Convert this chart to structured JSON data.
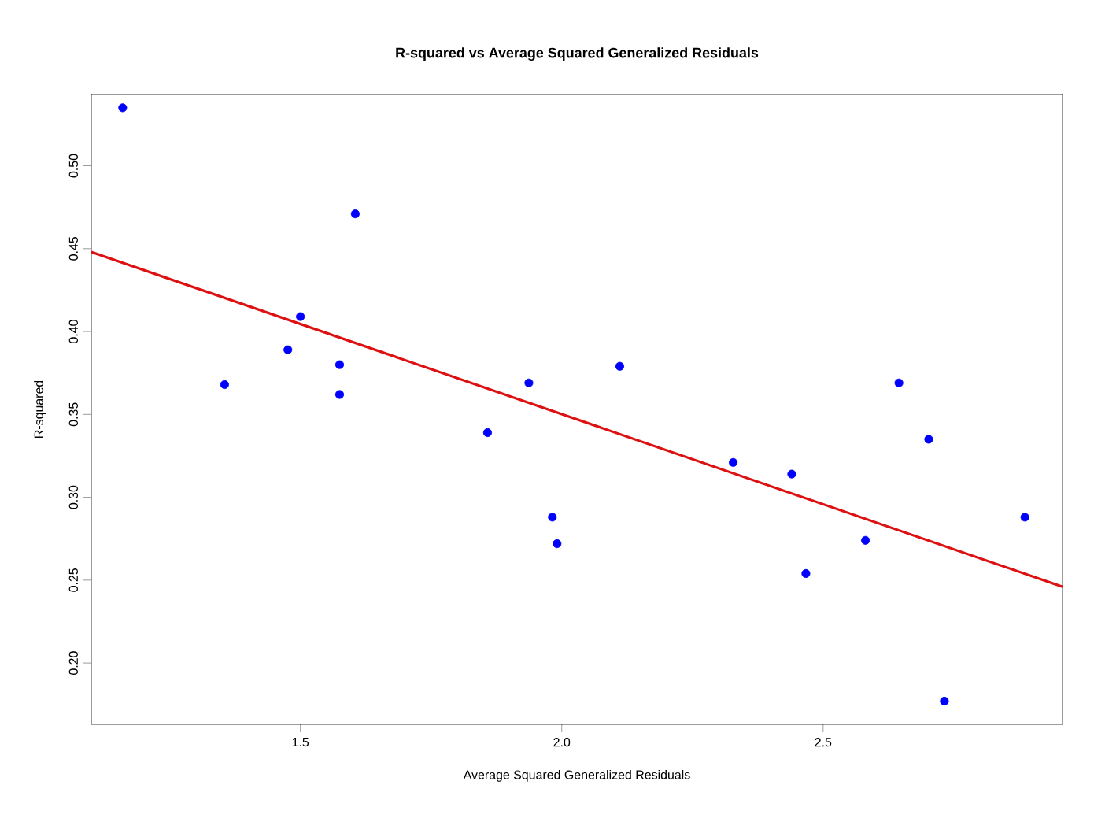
{
  "chart_data": {
    "type": "scatter",
    "title": "R-squared vs Average Squared Generalized Residuals",
    "xlabel": "Average Squared Generalized Residuals",
    "ylabel": "R-squared",
    "xlim": [
      1.1,
      2.958
    ],
    "ylim": [
      0.163,
      0.543
    ],
    "xticks": [
      1.5,
      {
        "value": 2,
        "label": "2.0"
      },
      2.5
    ],
    "yticks": [
      {
        "value": 0.2,
        "label": "0.20"
      },
      0.25,
      {
        "value": 0.3,
        "label": "0.30"
      },
      0.35,
      {
        "value": 0.4,
        "label": "0.40"
      },
      0.45,
      {
        "value": 0.5,
        "label": "0.50"
      }
    ],
    "grid": false,
    "series": [
      {
        "marker": "circle",
        "color": "#0000ff",
        "x": [
          1.16,
          1.355,
          1.476,
          1.5,
          1.575,
          1.575,
          1.605,
          1.858,
          1.937,
          1.982,
          1.991,
          2.111,
          2.328,
          2.44,
          2.467,
          2.581,
          2.645,
          2.702,
          2.732,
          2.886
        ],
        "values": [
          0.535,
          0.368,
          0.389,
          0.409,
          0.38,
          0.362,
          0.471,
          0.339,
          0.369,
          0.288,
          0.272,
          0.379,
          0.321,
          0.314,
          0.254,
          0.274,
          0.369,
          0.335,
          0.177,
          0.288
        ]
      },
      {
        "type": "line",
        "marker": "none",
        "color": "#dd1111",
        "x": [
          1.1,
          2.958
        ],
        "values": [
          0.448,
          0.246
        ]
      }
    ]
  }
}
